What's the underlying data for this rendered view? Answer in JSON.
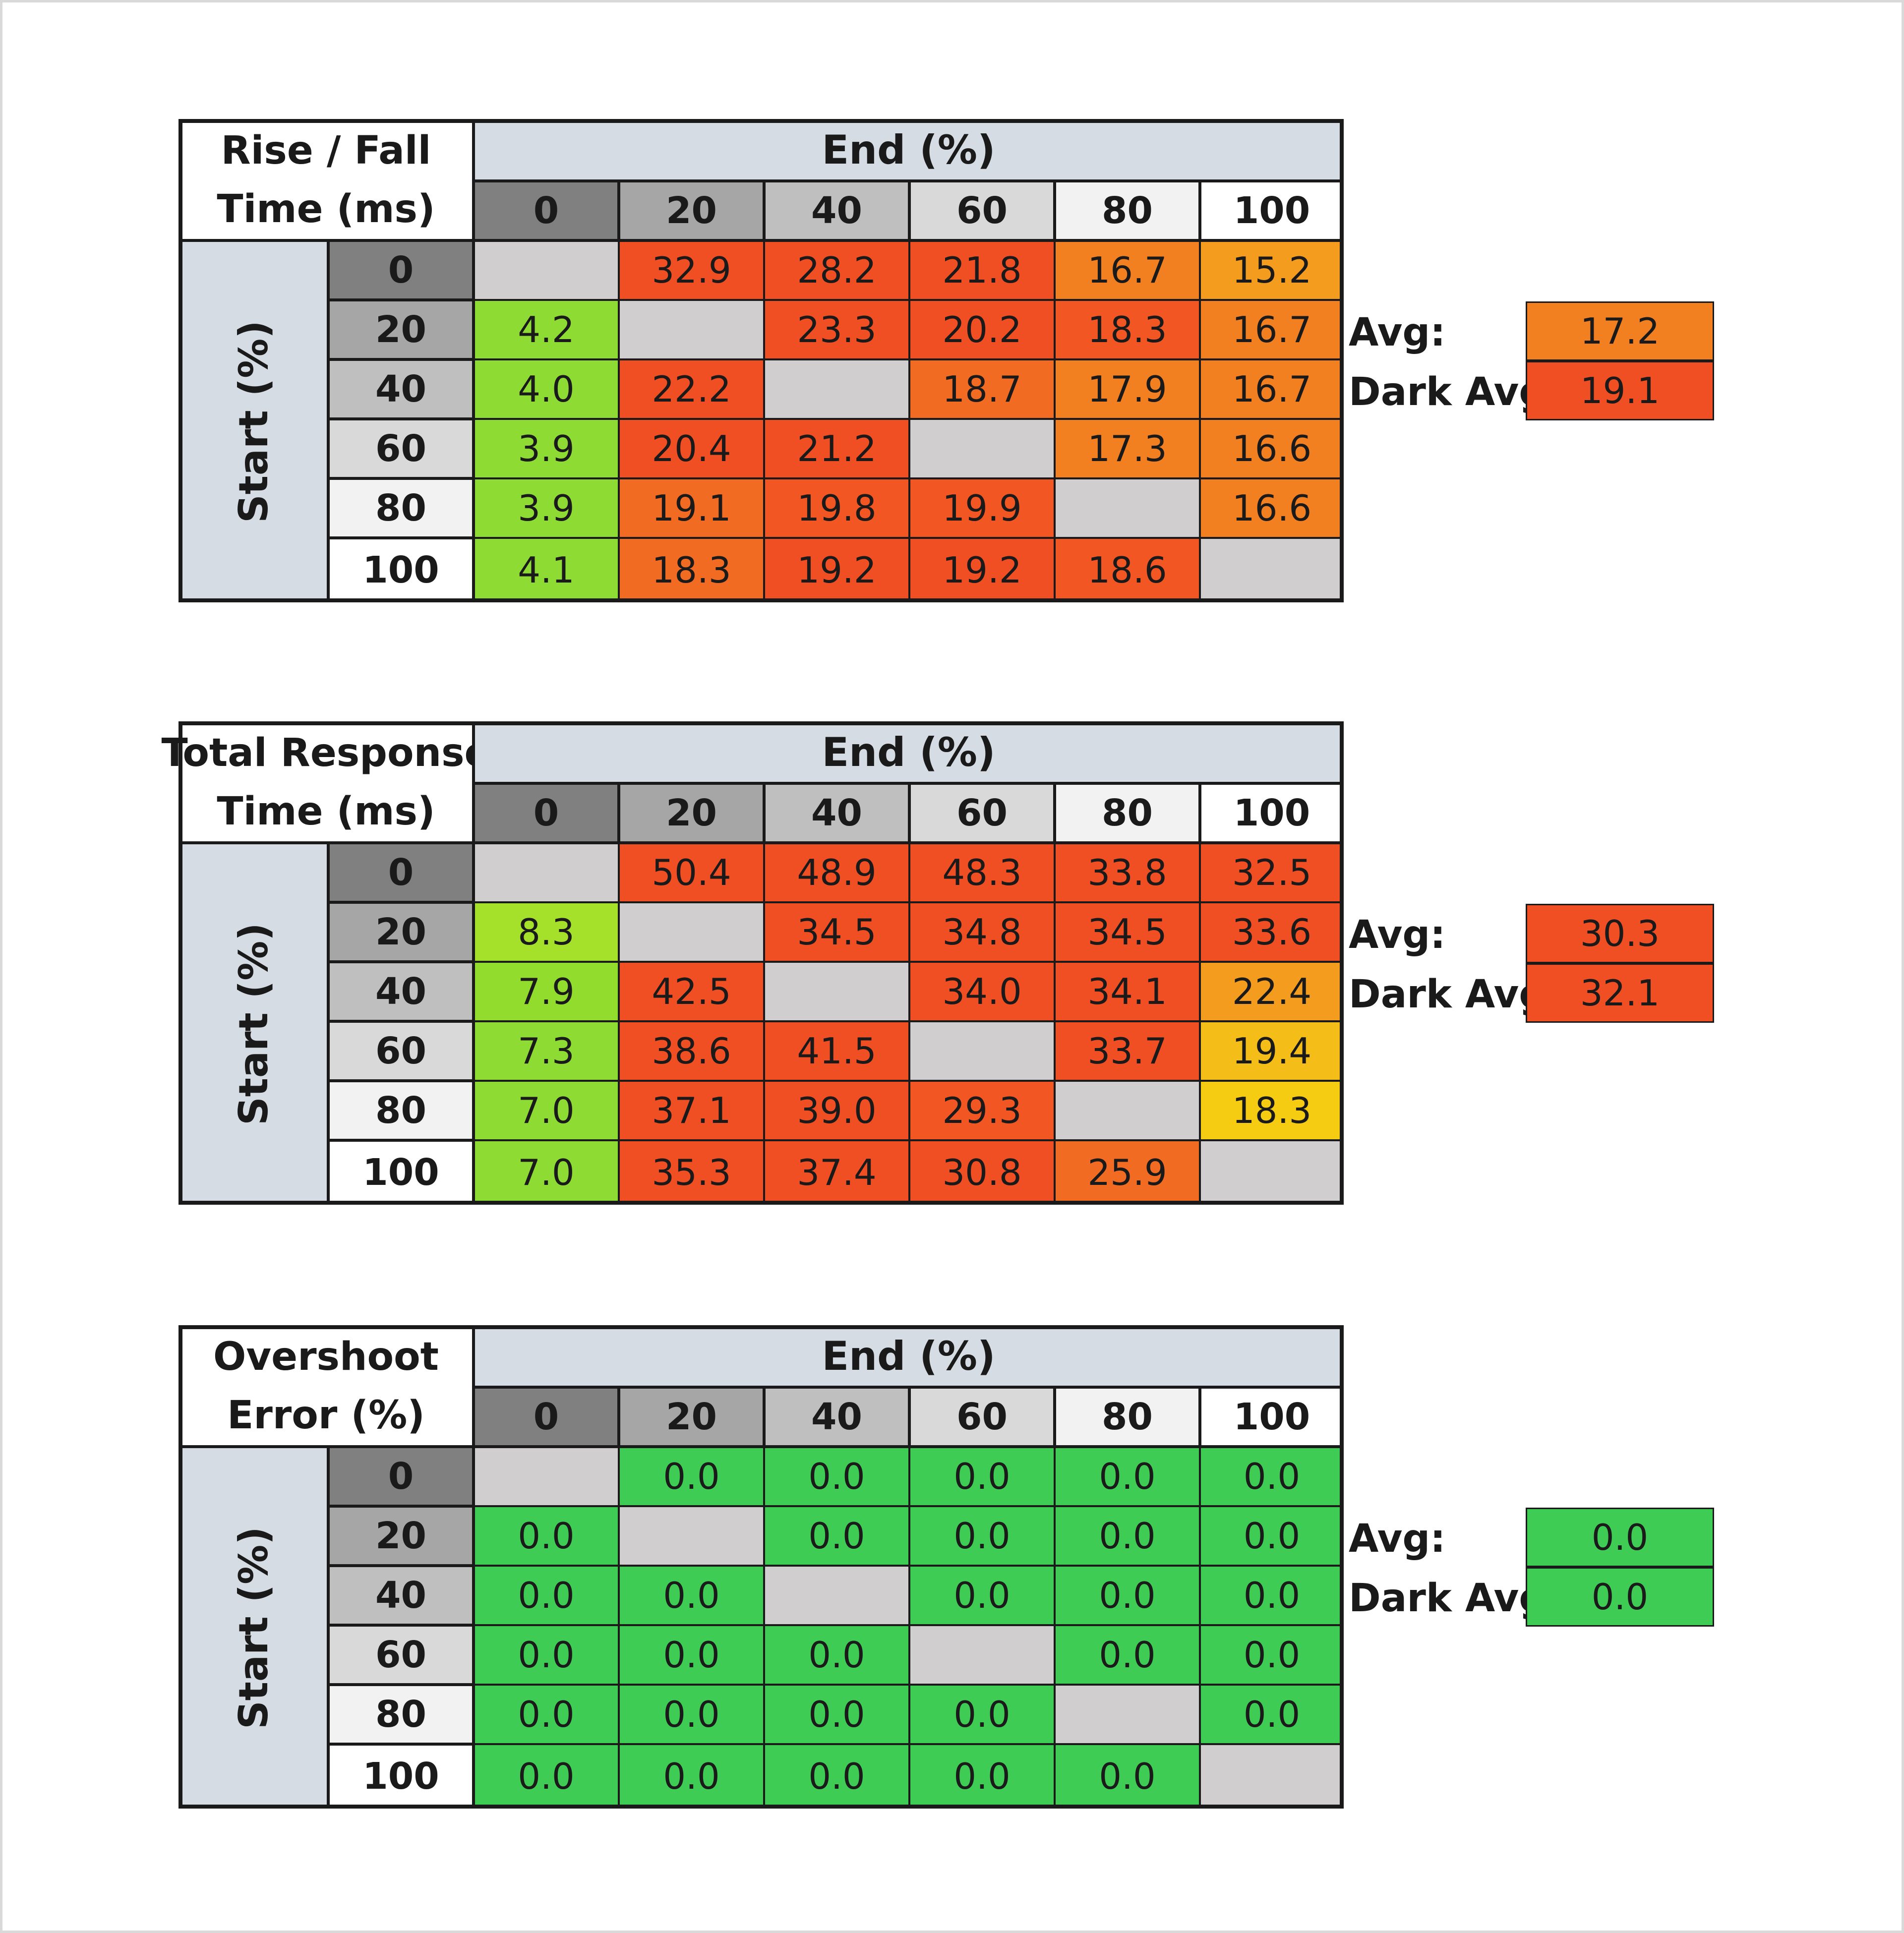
{
  "chart_data": [
    {
      "type": "table",
      "title_lines": [
        "Rise / Fall",
        "Time (ms)"
      ],
      "column_header": "End (%)",
      "row_header": "Start (%)",
      "columns": [
        "0",
        "20",
        "40",
        "60",
        "80",
        "100"
      ],
      "rows": [
        "0",
        "20",
        "40",
        "60",
        "80",
        "100"
      ],
      "values": [
        [
          "",
          "32.9",
          "28.2",
          "21.8",
          "16.7",
          "15.2"
        ],
        [
          "4.2",
          "",
          "23.3",
          "20.2",
          "18.3",
          "16.7"
        ],
        [
          "4.0",
          "22.2",
          "",
          "18.7",
          "17.9",
          "16.7"
        ],
        [
          "3.9",
          "20.4",
          "21.2",
          "",
          "17.3",
          "16.6"
        ],
        [
          "3.9",
          "19.1",
          "19.8",
          "19.9",
          "",
          "16.6"
        ],
        [
          "4.1",
          "18.3",
          "19.2",
          "19.2",
          "18.6",
          ""
        ]
      ],
      "colors": [
        [
          "#d0cece",
          "#f04e23",
          "#f04e23",
          "#f04e23",
          "#f28021",
          "#f39c1d"
        ],
        [
          "#8edc33",
          "#d0cece",
          "#f04e23",
          "#f04e23",
          "#f15623",
          "#f28021"
        ],
        [
          "#8edc33",
          "#f04e23",
          "#d0cece",
          "#f26b22",
          "#f28021",
          "#f28021"
        ],
        [
          "#8edc33",
          "#f04e23",
          "#f04e23",
          "#d0cece",
          "#f28021",
          "#f28021"
        ],
        [
          "#8edc33",
          "#f26b22",
          "#f15623",
          "#f15623",
          "#d0cece",
          "#f28021"
        ],
        [
          "#8edc33",
          "#f26b22",
          "#f04e23",
          "#f04e23",
          "#f15623",
          "#d0cece"
        ]
      ],
      "summary": [
        {
          "label": "Avg:",
          "value": "17.2",
          "color": "#f28021"
        },
        {
          "label": "Dark Avg:",
          "value": "19.1",
          "color": "#f04e23"
        }
      ]
    },
    {
      "type": "table",
      "title_lines": [
        "Total Response",
        "Time (ms)"
      ],
      "column_header": "End (%)",
      "row_header": "Start (%)",
      "columns": [
        "0",
        "20",
        "40",
        "60",
        "80",
        "100"
      ],
      "rows": [
        "0",
        "20",
        "40",
        "60",
        "80",
        "100"
      ],
      "values": [
        [
          "",
          "50.4",
          "48.9",
          "48.3",
          "33.8",
          "32.5"
        ],
        [
          "8.3",
          "",
          "34.5",
          "34.8",
          "34.5",
          "33.6"
        ],
        [
          "7.9",
          "42.5",
          "",
          "34.0",
          "34.1",
          "22.4"
        ],
        [
          "7.3",
          "38.6",
          "41.5",
          "",
          "33.7",
          "19.4"
        ],
        [
          "7.0",
          "37.1",
          "39.0",
          "29.3",
          "",
          "18.3"
        ],
        [
          "7.0",
          "35.3",
          "37.4",
          "30.8",
          "25.9",
          ""
        ]
      ],
      "colors": [
        [
          "#d0cece",
          "#f04e23",
          "#f04e23",
          "#f04e23",
          "#f04e23",
          "#f04e23"
        ],
        [
          "#a5e02b",
          "#d0cece",
          "#f04e23",
          "#f04e23",
          "#f04e23",
          "#f04e23"
        ],
        [
          "#92dc2e",
          "#f04e23",
          "#d0cece",
          "#f04e23",
          "#f04e23",
          "#f39c1d"
        ],
        [
          "#8edc33",
          "#f04e23",
          "#f04e23",
          "#d0cece",
          "#f04e23",
          "#f4bd17"
        ],
        [
          "#8edc33",
          "#f04e23",
          "#f04e23",
          "#f15623",
          "#d0cece",
          "#f6cc12"
        ],
        [
          "#8edc33",
          "#f04e23",
          "#f04e23",
          "#f04e23",
          "#f26b22",
          "#d0cece"
        ]
      ],
      "summary": [
        {
          "label": "Avg:",
          "value": "30.3",
          "color": "#f04e23"
        },
        {
          "label": "Dark Avg:",
          "value": "32.1",
          "color": "#f04e23"
        }
      ]
    },
    {
      "type": "table",
      "title_lines": [
        "Overshoot",
        "Error (%)"
      ],
      "column_header": "End (%)",
      "row_header": "Start (%)",
      "columns": [
        "0",
        "20",
        "40",
        "60",
        "80",
        "100"
      ],
      "rows": [
        "0",
        "20",
        "40",
        "60",
        "80",
        "100"
      ],
      "values": [
        [
          "",
          "0.0",
          "0.0",
          "0.0",
          "0.0",
          "0.0"
        ],
        [
          "0.0",
          "",
          "0.0",
          "0.0",
          "0.0",
          "0.0"
        ],
        [
          "0.0",
          "0.0",
          "",
          "0.0",
          "0.0",
          "0.0"
        ],
        [
          "0.0",
          "0.0",
          "0.0",
          "",
          "0.0",
          "0.0"
        ],
        [
          "0.0",
          "0.0",
          "0.0",
          "0.0",
          "",
          "0.0"
        ],
        [
          "0.0",
          "0.0",
          "0.0",
          "0.0",
          "0.0",
          ""
        ]
      ],
      "colors": [
        [
          "#d0cece",
          "#3fcc55",
          "#3fcc55",
          "#3fcc55",
          "#3fcc55",
          "#3fcc55"
        ],
        [
          "#3fcc55",
          "#d0cece",
          "#3fcc55",
          "#3fcc55",
          "#3fcc55",
          "#3fcc55"
        ],
        [
          "#3fcc55",
          "#3fcc55",
          "#d0cece",
          "#3fcc55",
          "#3fcc55",
          "#3fcc55"
        ],
        [
          "#3fcc55",
          "#3fcc55",
          "#3fcc55",
          "#d0cece",
          "#3fcc55",
          "#3fcc55"
        ],
        [
          "#3fcc55",
          "#3fcc55",
          "#3fcc55",
          "#3fcc55",
          "#d0cece",
          "#3fcc55"
        ],
        [
          "#3fcc55",
          "#3fcc55",
          "#3fcc55",
          "#3fcc55",
          "#3fcc55",
          "#d0cece"
        ]
      ],
      "summary": [
        {
          "label": "Avg:",
          "value": "0.0",
          "color": "#3fcc55"
        },
        {
          "label": "Dark Avg:",
          "value": "0.0",
          "color": "#3fcc55"
        }
      ]
    }
  ],
  "header_shades": [
    "#808080",
    "#a6a6a6",
    "#bfbfbf",
    "#d9d9d9",
    "#f2f2f2",
    "#ffffff"
  ]
}
